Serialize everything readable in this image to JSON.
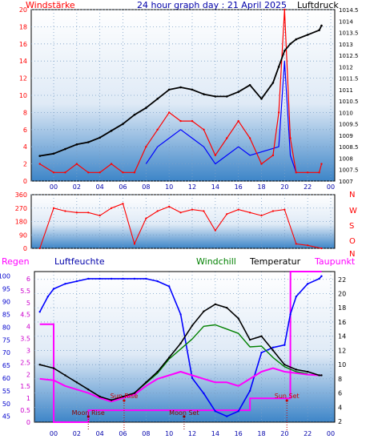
{
  "header": {
    "left_label": "Windstärke",
    "title": "24 hour graph day : 21 April 2025",
    "right_label": "Luftdruck"
  },
  "panel3_labels": {
    "regen": "Regen",
    "luftfeuchte": "Luftfeuchte",
    "windchill": "Windchill",
    "temperatur": "Temperatur",
    "taupunkt": "Taupunkt"
  },
  "annotations": {
    "sunrise": "Sun Rise",
    "moonrise": "Moon Rise",
    "moonset": "Moon Set",
    "sunset": "Sun Set"
  },
  "colors": {
    "wind": "#ff0000",
    "gust_blue": "#0000ff",
    "pressure": "#000000",
    "humidity": "#0000ff",
    "windchill": "#008000",
    "temperature": "#000000",
    "dewpoint": "#ff00ff",
    "rain": "#ff00ff",
    "direction": "#ff0000",
    "title": "#0000aa",
    "sun_label": "#cc0000",
    "moon_label": "#880000"
  },
  "chart_data": [
    {
      "type": "line",
      "title": "24 hour graph day : 21 April 2025",
      "x_ticks": [
        "00",
        "02",
        "04",
        "06",
        "08",
        "10",
        "12",
        "14",
        "16",
        "18",
        "20",
        "22",
        "00"
      ],
      "left_axis": {
        "label": "Windstärke",
        "ticks": [
          0,
          2,
          4,
          6,
          8,
          10,
          12,
          14,
          16,
          18,
          20
        ],
        "ylim": [
          0,
          20
        ]
      },
      "right_axis": {
        "label": "Luftdruck",
        "ticks": [
          "1007",
          "1007.5",
          "1008",
          "1008.5",
          "1009",
          "1009.5",
          "1010",
          "1010.5",
          "1011",
          "1011.5",
          "1012",
          "1012.5",
          "1013",
          "1013.5",
          "1014",
          "1014.5"
        ],
        "ylim": [
          1007,
          1014.5
        ]
      },
      "series": [
        {
          "name": "Luftdruck",
          "axis": "right",
          "x": [
            -1.2,
            0,
            1,
            2,
            3,
            4,
            5,
            6,
            7,
            8,
            9,
            10,
            11,
            12,
            13,
            14,
            15,
            16,
            17,
            18,
            19,
            19.5,
            20,
            20.5,
            21,
            22,
            23,
            23.2
          ],
          "y": [
            1008.1,
            1008.2,
            1008.4,
            1008.6,
            1008.7,
            1008.9,
            1009.2,
            1009.5,
            1009.9,
            1010.2,
            1010.6,
            1011.0,
            1011.1,
            1011.0,
            1010.8,
            1010.7,
            1010.7,
            1010.9,
            1011.2,
            1010.6,
            1011.3,
            1012.0,
            1012.7,
            1013.0,
            1013.2,
            1013.4,
            1013.6,
            1013.8
          ]
        },
        {
          "name": "Windstärke",
          "axis": "left",
          "x": [
            -1.2,
            0,
            1,
            2,
            3,
            4,
            5,
            6,
            7,
            8,
            9,
            10,
            11,
            12,
            13,
            14,
            15,
            16,
            17,
            18,
            19,
            19.5,
            20,
            20.5,
            21,
            22,
            23,
            23.2
          ],
          "y": [
            2,
            1,
            1,
            2,
            1,
            1,
            2,
            1,
            1,
            4,
            6,
            8,
            7,
            7,
            6,
            3,
            5,
            7,
            5,
            2,
            3,
            8,
            20,
            5,
            1,
            1,
            1,
            2
          ]
        },
        {
          "name": "Windböen",
          "axis": "left",
          "x": [
            8,
            9,
            10,
            11,
            12,
            13,
            14,
            15,
            16,
            17,
            19.5,
            20,
            20.5,
            21
          ],
          "y": [
            2,
            4,
            5,
            6,
            5,
            4,
            2,
            3,
            4,
            3,
            4,
            14,
            3,
            1
          ]
        }
      ]
    },
    {
      "type": "line",
      "title": "",
      "y_ticks": [
        0,
        90,
        180,
        270,
        360
      ],
      "right_labels": [
        "N",
        "W",
        "S",
        "O",
        "N"
      ],
      "ylim": [
        0,
        360
      ],
      "series": [
        {
          "name": "Windrichtung",
          "x": [
            -1.2,
            0,
            1,
            2,
            3,
            4,
            5,
            6,
            7,
            8,
            9,
            10,
            11,
            12,
            13,
            14,
            15,
            16,
            17,
            18,
            19,
            20,
            21,
            22,
            23.2
          ],
          "y": [
            0,
            270,
            250,
            240,
            240,
            220,
            270,
            300,
            30,
            200,
            250,
            280,
            240,
            260,
            250,
            120,
            230,
            260,
            240,
            220,
            250,
            260,
            30,
            20,
            0
          ]
        }
      ]
    },
    {
      "type": "line",
      "title": "",
      "axes": {
        "luftfeuchte": {
          "label": "Luftfeuchte",
          "ticks": [
            45,
            50,
            55,
            60,
            65,
            70,
            75,
            80,
            85,
            90,
            95,
            100
          ],
          "ylim": [
            42.7,
            101.8
          ]
        },
        "regen": {
          "label": "Regen",
          "ticks": [
            0,
            0.5,
            1,
            1.5,
            2,
            2.5,
            3,
            3.5,
            4,
            4.5,
            5,
            5.5,
            6
          ],
          "ylim": [
            0,
            6.3
          ]
        },
        "temperatur": {
          "label": "Temperatur",
          "ticks": [
            2,
            4,
            6,
            8,
            10,
            12,
            14,
            16,
            18,
            20,
            22
          ],
          "ylim": [
            1.9,
            23.1
          ]
        }
      },
      "series": [
        {
          "name": "Luftfeuchte",
          "axis": "luftfeuchte",
          "x": [
            -1.2,
            -0.5,
            0,
            1,
            2,
            3,
            4,
            5,
            6,
            7,
            8,
            9,
            10,
            11,
            12,
            13,
            14,
            15,
            16,
            17,
            18,
            19,
            20,
            20.5,
            21,
            22,
            23,
            23.2
          ],
          "y": [
            86,
            92,
            95,
            97,
            98,
            99,
            99,
            99,
            99,
            99,
            99,
            98,
            96,
            85,
            60,
            54,
            47,
            45,
            47,
            55,
            70,
            72,
            73,
            85,
            92,
            97,
            99,
            100
          ]
        },
        {
          "name": "Temperatur",
          "axis": "temperatur",
          "x": [
            -1.2,
            0,
            1,
            2,
            3,
            4,
            5,
            6,
            7,
            8,
            9,
            10,
            11,
            12,
            13,
            14,
            15,
            16,
            17,
            18,
            19,
            20,
            21,
            22,
            23,
            23.2
          ],
          "y": [
            10.0,
            9.5,
            8.5,
            7.5,
            6.5,
            5.5,
            5.0,
            5.5,
            6.0,
            7.5,
            9.0,
            11.0,
            13.0,
            15.5,
            17.5,
            18.5,
            18.0,
            16.5,
            13.5,
            14.0,
            12.0,
            10.0,
            9.3,
            9.0,
            8.5,
            8.5
          ]
        },
        {
          "name": "Taupunkt",
          "axis": "temperatur",
          "x": [
            -1.2,
            0,
            1,
            2,
            3,
            4,
            5,
            6,
            7,
            8,
            9,
            10,
            11,
            12,
            13,
            14,
            15,
            16,
            17,
            18,
            19,
            20,
            21,
            22,
            23,
            23.2
          ],
          "y": [
            8.0,
            7.8,
            7.0,
            6.5,
            6.0,
            5.3,
            4.8,
            5.3,
            5.8,
            7.0,
            8.0,
            8.5,
            9.0,
            8.5,
            8.0,
            7.5,
            7.5,
            7.0,
            8.0,
            9.0,
            9.5,
            9.0,
            8.8,
            8.6,
            8.5,
            8.5
          ]
        },
        {
          "name": "Windchill",
          "axis": "temperatur",
          "x": [
            7,
            8,
            9,
            10,
            11,
            12,
            13,
            14,
            15,
            16,
            17,
            18,
            19,
            20,
            21,
            22
          ],
          "y": [
            6.0,
            7.4,
            8.8,
            10.8,
            12.2,
            13.6,
            15.4,
            15.6,
            15.0,
            14.4,
            12.5,
            12.6,
            11.0,
            9.7,
            9.0,
            8.7
          ]
        },
        {
          "name": "Regen",
          "axis": "regen",
          "x": [
            -1.2,
            0,
            0.01,
            3,
            3.01,
            17,
            17.01,
            20.5,
            20.51,
            23.2
          ],
          "y": [
            4.1,
            4.1,
            0,
            0,
            0.5,
            0.5,
            1.0,
            1.0,
            6.3,
            6.3
          ]
        }
      ]
    }
  ]
}
